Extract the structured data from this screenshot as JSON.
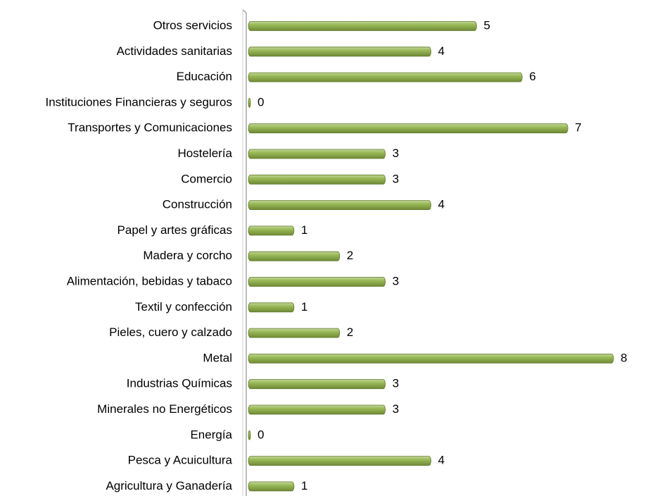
{
  "chart_data": {
    "type": "barh",
    "categories": [
      "Otros servicios",
      "Actividades sanitarias",
      "Educación",
      "Instituciones Financieras y seguros",
      "Transportes y Comunicaciones",
      "Hostelería",
      "Comercio",
      "Construcción",
      "Papel y artes gráficas",
      "Madera y corcho",
      "Alimentación, bebidas y tabaco",
      "Textil y confección",
      "Pieles, cuero y calzado",
      "Metal",
      "Industrias Químicas",
      "Minerales no Energéticos",
      "Energía",
      "Pesca y Acuicultura",
      "Agricultura y Ganadería"
    ],
    "values": [
      5,
      4,
      6,
      0,
      7,
      3,
      3,
      4,
      1,
      2,
      3,
      1,
      2,
      8,
      3,
      3,
      0,
      4,
      1
    ],
    "color": "#9bbb59"
  }
}
